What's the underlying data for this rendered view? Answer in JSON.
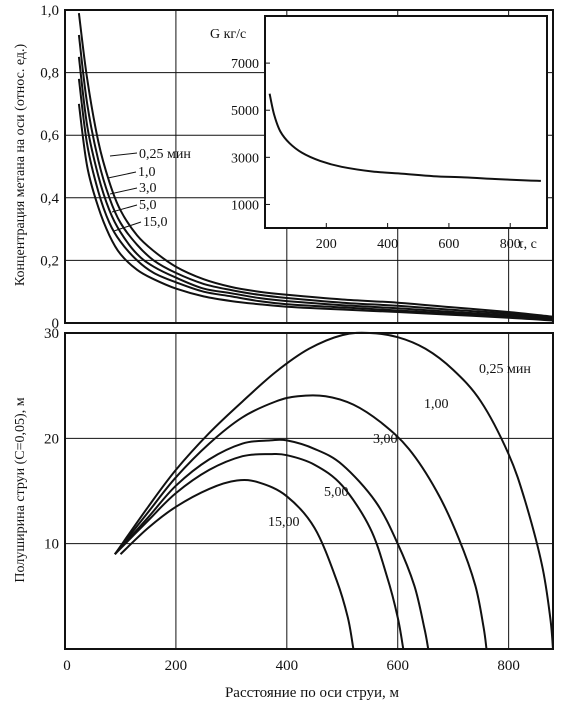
{
  "xlabel": "Расстояние по оси струи, м",
  "chart_data": [
    {
      "type": "line",
      "ylabel": "Концентрация метана на оси (относ. ед.)",
      "xlim": [
        0,
        880
      ],
      "ylim": [
        0,
        1.0
      ],
      "x_ticks": [
        {
          "v": 0,
          "label": "0"
        },
        {
          "v": 200,
          "label": "200"
        },
        {
          "v": 400,
          "label": "400"
        },
        {
          "v": 600,
          "label": "600"
        },
        {
          "v": 800,
          "label": "800"
        }
      ],
      "y_ticks": [
        {
          "v": 0,
          "label": "0"
        },
        {
          "v": 0.2,
          "label": "0,2"
        },
        {
          "v": 0.4,
          "label": "0,4"
        },
        {
          "v": 0.6,
          "label": "0,6"
        },
        {
          "v": 0.8,
          "label": "0,8"
        },
        {
          "v": 1.0,
          "label": "1,0"
        }
      ],
      "grid": true,
      "series": [
        {
          "name": "0,25 мин",
          "x": [
            25,
            40,
            60,
            80,
            100,
            130,
            160,
            200,
            250,
            300,
            350,
            400,
            500,
            600,
            700,
            800,
            880
          ],
          "y": [
            0.99,
            0.78,
            0.58,
            0.45,
            0.36,
            0.28,
            0.23,
            0.18,
            0.14,
            0.115,
            0.1,
            0.09,
            0.075,
            0.065,
            0.05,
            0.035,
            0.02
          ]
        },
        {
          "name": "1,0",
          "x": [
            25,
            40,
            60,
            80,
            100,
            130,
            160,
            200,
            250,
            300,
            350,
            400,
            500,
            600,
            700,
            800,
            880
          ],
          "y": [
            0.92,
            0.7,
            0.52,
            0.4,
            0.32,
            0.25,
            0.2,
            0.16,
            0.125,
            0.105,
            0.09,
            0.08,
            0.065,
            0.055,
            0.042,
            0.03,
            0.015
          ]
        },
        {
          "name": "3,0",
          "x": [
            25,
            40,
            60,
            80,
            100,
            130,
            160,
            200,
            250,
            300,
            350,
            400,
            500,
            600,
            700,
            800,
            880
          ],
          "y": [
            0.85,
            0.63,
            0.47,
            0.36,
            0.29,
            0.22,
            0.18,
            0.145,
            0.11,
            0.095,
            0.08,
            0.07,
            0.057,
            0.047,
            0.035,
            0.025,
            0.012
          ]
        },
        {
          "name": "5,0",
          "x": [
            25,
            40,
            60,
            80,
            100,
            130,
            160,
            200,
            250,
            300,
            350,
            400,
            500,
            600,
            700,
            800,
            880
          ],
          "y": [
            0.78,
            0.57,
            0.42,
            0.32,
            0.26,
            0.2,
            0.16,
            0.13,
            0.1,
            0.085,
            0.07,
            0.06,
            0.05,
            0.04,
            0.03,
            0.02,
            0.01
          ]
        },
        {
          "name": "15,0",
          "x": [
            25,
            40,
            60,
            80,
            100,
            130,
            160,
            200,
            250,
            300,
            350,
            400,
            500,
            600,
            700,
            800,
            880
          ],
          "y": [
            0.7,
            0.5,
            0.37,
            0.28,
            0.22,
            0.17,
            0.14,
            0.11,
            0.085,
            0.07,
            0.06,
            0.052,
            0.043,
            0.035,
            0.026,
            0.017,
            0.008
          ]
        }
      ],
      "label_unit": "мин"
    },
    {
      "type": "line",
      "inset": true,
      "title": "G кг/с",
      "xlabel": "τ, с",
      "xlim": [
        0,
        920
      ],
      "ylim": [
        0,
        9000
      ],
      "x_ticks": [
        {
          "v": 200,
          "label": "200"
        },
        {
          "v": 400,
          "label": "400"
        },
        {
          "v": 600,
          "label": "600"
        },
        {
          "v": 800,
          "label": "800"
        }
      ],
      "y_ticks": [
        {
          "v": 1000,
          "label": "1000"
        },
        {
          "v": 3000,
          "label": "3000"
        },
        {
          "v": 5000,
          "label": "5000"
        },
        {
          "v": 7000,
          "label": "7000"
        }
      ],
      "grid": false,
      "series": [
        {
          "x": [
            15,
            30,
            50,
            80,
            120,
            180,
            250,
            350,
            450,
            550,
            650,
            750,
            850,
            900
          ],
          "y": [
            5700,
            4800,
            4100,
            3600,
            3200,
            2850,
            2600,
            2400,
            2300,
            2200,
            2150,
            2080,
            2020,
            2000
          ]
        }
      ]
    },
    {
      "type": "line",
      "ylabel": "Полуширина струи (С=0,05), м",
      "xlim": [
        0,
        880
      ],
      "ylim": [
        0,
        30
      ],
      "x_ticks": [
        {
          "v": 0,
          "label": "0"
        },
        {
          "v": 200,
          "label": "200"
        },
        {
          "v": 400,
          "label": "400"
        },
        {
          "v": 600,
          "label": "600"
        },
        {
          "v": 800,
          "label": "800"
        }
      ],
      "y_ticks": [
        {
          "v": 10,
          "label": "10"
        },
        {
          "v": 20,
          "label": "20"
        },
        {
          "v": 30,
          "label": "30"
        }
      ],
      "grid": true,
      "series": [
        {
          "name": "0,25 мин",
          "x": [
            90,
            150,
            200,
            260,
            320,
            380,
            440,
            500,
            550,
            600,
            650,
            700,
            750,
            800,
            830,
            860,
            875,
            880
          ],
          "y": [
            9,
            13.5,
            17,
            20.5,
            23.5,
            26.3,
            28.5,
            29.8,
            30,
            29.6,
            28.5,
            26.5,
            23.5,
            18.5,
            14,
            8,
            3,
            0
          ]
        },
        {
          "name": "1,00",
          "x": [
            90,
            150,
            200,
            260,
            320,
            380,
            420,
            470,
            520,
            570,
            620,
            670,
            710,
            740,
            755,
            760
          ],
          "y": [
            9,
            13,
            16.3,
            19.5,
            22,
            23.5,
            24,
            24,
            23.2,
            21.5,
            19,
            15,
            10.5,
            6,
            2,
            0
          ]
        },
        {
          "name": "3,00",
          "x": [
            90,
            150,
            200,
            260,
            320,
            370,
            400,
            450,
            500,
            560,
            600,
            630,
            648,
            655
          ],
          "y": [
            9,
            12.5,
            15.5,
            18,
            19.5,
            19.8,
            19.8,
            19,
            17.5,
            14,
            10,
            6,
            2,
            0
          ]
        },
        {
          "name": "5,00",
          "x": [
            90,
            150,
            200,
            260,
            320,
            370,
            400,
            450,
            500,
            550,
            580,
            600,
            610
          ],
          "y": [
            9,
            12.2,
            14.8,
            17,
            18.3,
            18.5,
            18.4,
            17.5,
            15.5,
            11.5,
            7,
            3,
            0
          ]
        },
        {
          "name": "15,00",
          "x": [
            100,
            150,
            200,
            260,
            310,
            350,
            400,
            450,
            490,
            510,
            520
          ],
          "y": [
            9,
            11.5,
            13.5,
            15.2,
            16,
            15.8,
            14.5,
            11.5,
            6.5,
            3,
            0
          ]
        }
      ]
    }
  ]
}
